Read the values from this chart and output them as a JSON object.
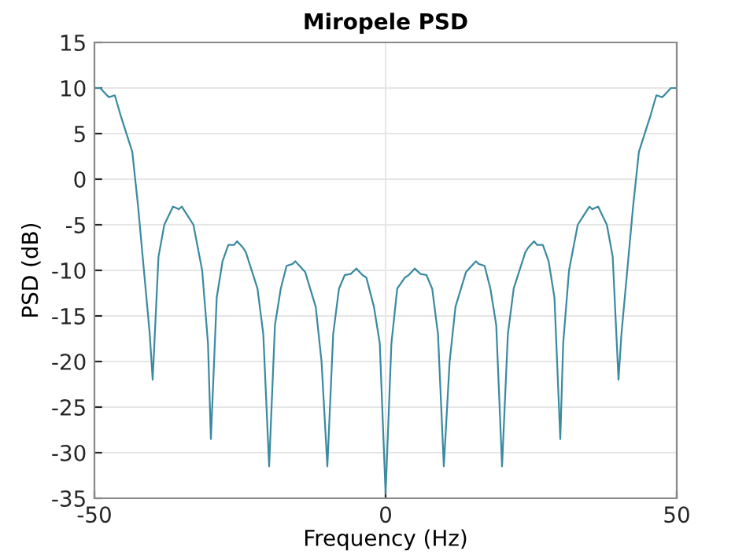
{
  "chart_data": {
    "type": "line",
    "title": "Miropele PSD",
    "xlabel": "Frequency (Hz)",
    "ylabel": "PSD (dB)",
    "series": [
      {
        "color": "#3b8aa0",
        "x": [
          -50,
          -49,
          -48,
          -47.5,
          -46.5,
          -45.5,
          -45,
          -44,
          -43.5,
          -42.5,
          -41.5,
          -40.5,
          -40,
          -39,
          -38,
          -36.5,
          -35.5,
          -35,
          -34,
          -33,
          -31.5,
          -30.5,
          -30,
          -29,
          -28,
          -27,
          -26,
          -25.5,
          -24.5,
          -24,
          -22,
          -21,
          -20,
          -19,
          -18,
          -17,
          -16,
          -15.5,
          -14.5,
          -13.8,
          -12,
          -11,
          -10,
          -9,
          -8,
          -7,
          -6,
          -5,
          -4,
          -3.3,
          -2,
          -1,
          0,
          1,
          2,
          3.3,
          4,
          5,
          6,
          7,
          8,
          9,
          10,
          11,
          12,
          13.8,
          14.5,
          15.5,
          16,
          17,
          18,
          19,
          20,
          21,
          22,
          24,
          24.5,
          25.5,
          26,
          27,
          28,
          29,
          30,
          30.5,
          31.5,
          33,
          34,
          35,
          35.5,
          36.5,
          38,
          39,
          40,
          40.5,
          41.5,
          42.5,
          43.5,
          44,
          45,
          45.5,
          46.5,
          47.5,
          48,
          49,
          50
        ],
        "values": [
          10,
          10,
          9.3,
          9,
          9.2,
          7,
          6,
          4,
          3,
          -3,
          -10,
          -17,
          -22,
          -8.5,
          -5,
          -3,
          -3.3,
          -3,
          -4,
          -5,
          -10,
          -18,
          -28.5,
          -13,
          -9,
          -7.2,
          -7.2,
          -6.8,
          -7.5,
          -8,
          -12,
          -17,
          -31.5,
          -16,
          -12,
          -9.5,
          -9.3,
          -9,
          -9.7,
          -10.2,
          -14,
          -20,
          -31.5,
          -17,
          -12,
          -10.5,
          -10.4,
          -9.8,
          -10.5,
          -10.8,
          -14,
          -18,
          -34.5,
          -18,
          -12,
          -10.8,
          -10.5,
          -9.8,
          -10.4,
          -10.5,
          -12,
          -17,
          -31.5,
          -20,
          -14,
          -10.2,
          -9.7,
          -9,
          -9.3,
          -9.5,
          -12,
          -16,
          -31.5,
          -17,
          -12,
          -8,
          -7.5,
          -6.8,
          -7.2,
          -7.2,
          -9,
          -13,
          -28.5,
          -18,
          -10,
          -5,
          -4,
          -3,
          -3.3,
          -3,
          -5,
          -8.5,
          -22,
          -17,
          -10,
          -3,
          3,
          4,
          6,
          7,
          9.2,
          9,
          9.3,
          10,
          10
        ]
      }
    ],
    "xlim": [
      -50,
      50
    ],
    "ylim": [
      -35,
      15
    ],
    "xticks": [
      -50,
      0,
      50
    ],
    "yticks": [
      -35,
      -30,
      -25,
      -20,
      -15,
      -10,
      -5,
      0,
      5,
      10,
      15
    ],
    "grid": true,
    "marker": "none",
    "line_style": "solid"
  }
}
